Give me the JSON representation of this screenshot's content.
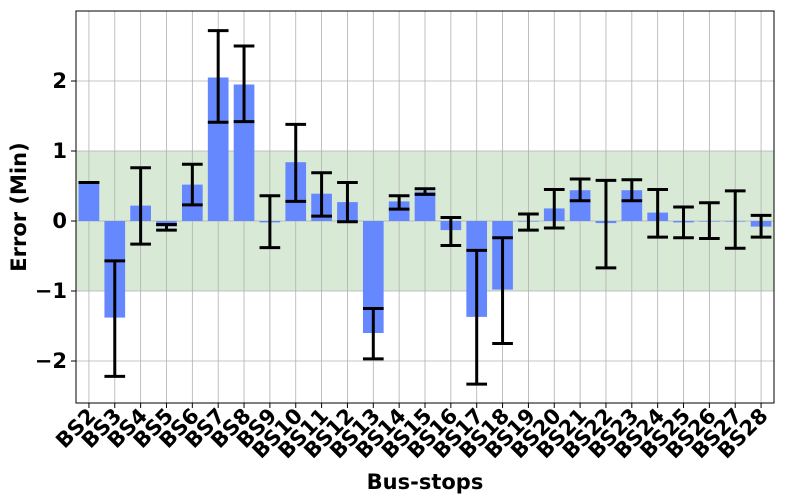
{
  "chart_data": {
    "type": "bar",
    "xlabel": "Bus-stops",
    "ylabel": "Error (Min)",
    "ylim": [
      -2.6,
      3.0
    ],
    "yticks": [
      -2,
      -1,
      0,
      1,
      2
    ],
    "ytick_labels": [
      "−2",
      "−1",
      "0",
      "1",
      "2"
    ],
    "grid": true,
    "band": {
      "from": -1,
      "to": 1,
      "color": "#d8ead6"
    },
    "colors": {
      "bar": "#6688ff",
      "error": "#000000",
      "grid": "#b0b0b0"
    },
    "categories": [
      "BS2",
      "BS3",
      "BS4",
      "BS5",
      "BS6",
      "BS7",
      "BS8",
      "BS9",
      "BS10",
      "BS11",
      "BS12",
      "BS13",
      "BS14",
      "BS15",
      "BS16",
      "BS17",
      "BS18",
      "BS19",
      "BS20",
      "BS21",
      "BS22",
      "BS23",
      "BS24",
      "BS25",
      "BS26",
      "BS27",
      "BS28"
    ],
    "values": [
      0.55,
      -1.38,
      0.22,
      -0.08,
      0.52,
      2.05,
      1.95,
      -0.02,
      0.84,
      0.39,
      0.27,
      -1.6,
      0.28,
      0.42,
      -0.13,
      -1.37,
      -0.98,
      0.0,
      0.18,
      0.44,
      -0.03,
      0.44,
      0.12,
      -0.02,
      0.0,
      0.0,
      -0.08
    ],
    "error_low": [
      0.55,
      -2.22,
      -0.33,
      -0.13,
      0.23,
      1.41,
      1.42,
      -0.38,
      0.28,
      0.07,
      -0.01,
      -1.97,
      0.17,
      0.38,
      -0.35,
      -2.33,
      -1.75,
      -0.13,
      -0.1,
      0.29,
      -0.67,
      0.29,
      -0.23,
      -0.24,
      -0.25,
      -0.39,
      -0.23
    ],
    "error_high": [
      0.55,
      -0.57,
      0.76,
      -0.05,
      0.81,
      2.72,
      2.5,
      0.36,
      1.38,
      0.69,
      0.55,
      -1.25,
      0.36,
      0.46,
      0.05,
      -0.42,
      -0.24,
      0.1,
      0.45,
      0.6,
      0.58,
      0.59,
      0.45,
      0.2,
      0.26,
      0.43,
      0.08
    ]
  }
}
